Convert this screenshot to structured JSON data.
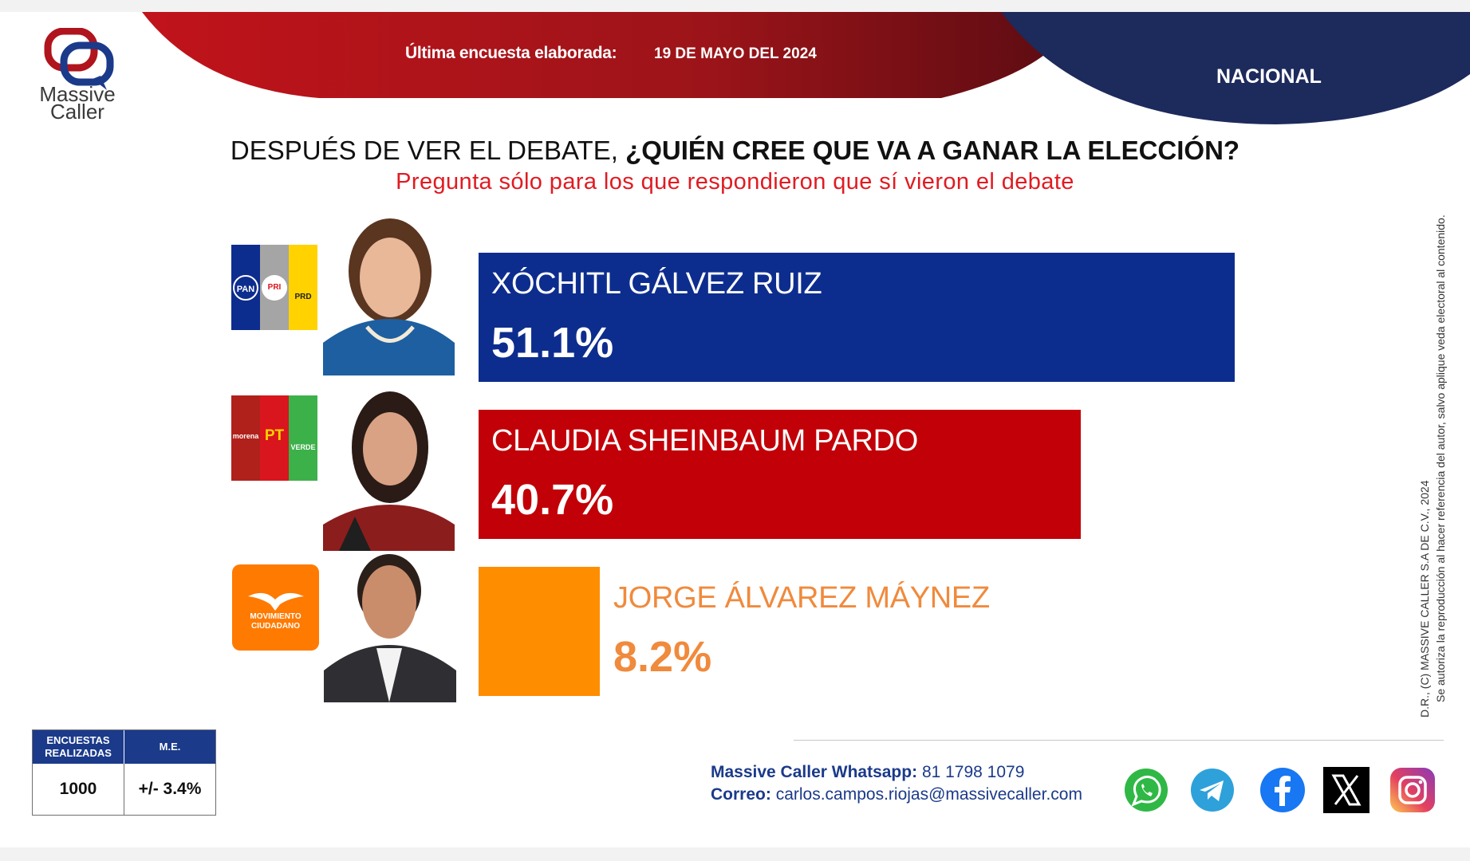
{
  "header": {
    "date_label": "Última encuesta elaborada:",
    "date_value": "19 DE MAYO DEL 2024",
    "region": "NACIONAL"
  },
  "logo": {
    "line1": "Massive",
    "line2": "Caller"
  },
  "question": {
    "prefix": "DESPUÉS DE VER EL DEBATE,",
    "bold": "¿QUIÉN CREE QUE VA A GANAR LA ELECCIÓN?",
    "subtitle": "Pregunta sólo para los que respondieron  que sí vieron el debate"
  },
  "chart_data": {
    "type": "bar",
    "orientation": "horizontal",
    "categories": [
      "XÓCHITL GÁLVEZ RUIZ",
      "CLAUDIA SHEINBAUM PARDO",
      "JORGE ÁLVAREZ MÁYNEZ"
    ],
    "values": [
      51.1,
      40.7,
      8.2
    ],
    "value_labels": [
      "51.1%",
      "40.7%",
      "8.2%"
    ],
    "colors": [
      "#0d2d8e",
      "#c10007",
      "#ff8d00"
    ],
    "title": "DESPUÉS DE VER EL DEBATE, ¿QUIÉN CREE QUE VA A GANAR LA ELECCIÓN?",
    "xlabel": "",
    "ylabel": ""
  },
  "parties": [
    {
      "labels": [
        "PAN",
        "PRI",
        "PRD"
      ],
      "colors": [
        "#0d2d8e",
        "#a5a5a5",
        "#ffd200"
      ]
    },
    {
      "labels": [
        "morena",
        "PT",
        "VERDE"
      ],
      "colors": [
        "#b0211b",
        "#d9151d",
        "#3cb14a"
      ]
    },
    {
      "labels": [
        "MOVIMIENTO CIUDADANO"
      ],
      "colors": [
        "#ff7a00"
      ]
    }
  ],
  "stats": {
    "col1_header": "ENCUESTAS REALIZADAS",
    "col2_header": "M.E.",
    "col1_value": "1000",
    "col2_value": "+/- 3.4%"
  },
  "contact": {
    "whatsapp_label": "Massive Caller Whatsapp:",
    "whatsapp_value": "81 1798  1079",
    "email_label": "Correo:",
    "email_value": "carlos.campos.riojas@massivecaller.com"
  },
  "copyright": {
    "line1": "D.R., (C) MASSIVE CALLER S.A DE C.V., 2024",
    "line2": "Se autoriza la reproducción al hacer referencia del autor, salvo aplique veda electoral al contenido."
  },
  "social_icons": [
    "whatsapp-icon",
    "telegram-icon",
    "facebook-icon",
    "x-icon",
    "instagram-icon"
  ]
}
